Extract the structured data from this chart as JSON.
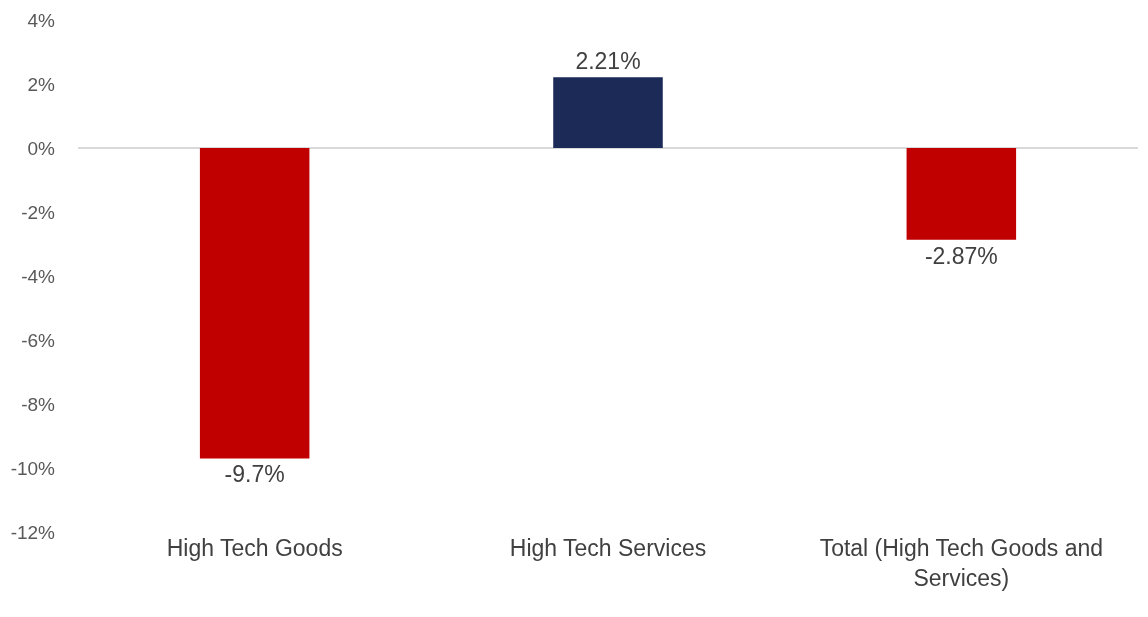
{
  "chart_data": {
    "type": "bar",
    "categories": [
      "High Tech Goods",
      "High Tech Services",
      "Total (High Tech Goods and Services)"
    ],
    "values": [
      -9.7,
      2.21,
      -2.87
    ],
    "colors": [
      "#c00000",
      "#1b2a56",
      "#c00000"
    ],
    "value_labels": [
      "-9.7%",
      "2.21%",
      "-2.87%"
    ],
    "ylim": [
      -12,
      4
    ],
    "yticks": [
      {
        "value": 4,
        "label": "4%"
      },
      {
        "value": 2,
        "label": "2%"
      },
      {
        "value": 0,
        "label": "0%"
      },
      {
        "value": -2,
        "label": "-2%"
      },
      {
        "value": -4,
        "label": "-4%"
      },
      {
        "value": -6,
        "label": "-6%"
      },
      {
        "value": -8,
        "label": "-8%"
      },
      {
        "value": -10,
        "label": "-10%"
      },
      {
        "value": -12,
        "label": "-12%"
      }
    ]
  }
}
